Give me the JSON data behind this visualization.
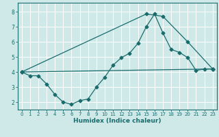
{
  "title": "",
  "xlabel": "Humidex (Indice chaleur)",
  "bg_color": "#cfe9e9",
  "grid_color": "#b0d8d8",
  "line_color": "#1a6b6b",
  "xlim": [
    -0.5,
    23.5
  ],
  "ylim": [
    1.5,
    8.6
  ],
  "xticks": [
    0,
    1,
    2,
    3,
    4,
    5,
    6,
    7,
    8,
    9,
    10,
    11,
    12,
    13,
    14,
    15,
    16,
    17,
    18,
    19,
    20,
    21,
    22,
    23
  ],
  "yticks": [
    2,
    3,
    4,
    5,
    6,
    7,
    8
  ],
  "line1_x": [
    0,
    1,
    2,
    3,
    4,
    5,
    6,
    7,
    8,
    9,
    10,
    11,
    12,
    13,
    14,
    15,
    16,
    17,
    18,
    19,
    20,
    21,
    22,
    23
  ],
  "line1_y": [
    4.0,
    3.75,
    3.75,
    3.2,
    2.5,
    2.0,
    1.85,
    2.1,
    2.2,
    3.0,
    3.65,
    4.45,
    4.95,
    5.25,
    5.9,
    7.0,
    7.85,
    6.6,
    5.5,
    5.3,
    4.95,
    4.1,
    4.2,
    4.2
  ],
  "line2_x": [
    0,
    15,
    17,
    20,
    23
  ],
  "line2_y": [
    4.0,
    7.85,
    7.7,
    6.0,
    4.2
  ],
  "line3_x": [
    0,
    23
  ],
  "line3_y": [
    4.0,
    4.2
  ]
}
